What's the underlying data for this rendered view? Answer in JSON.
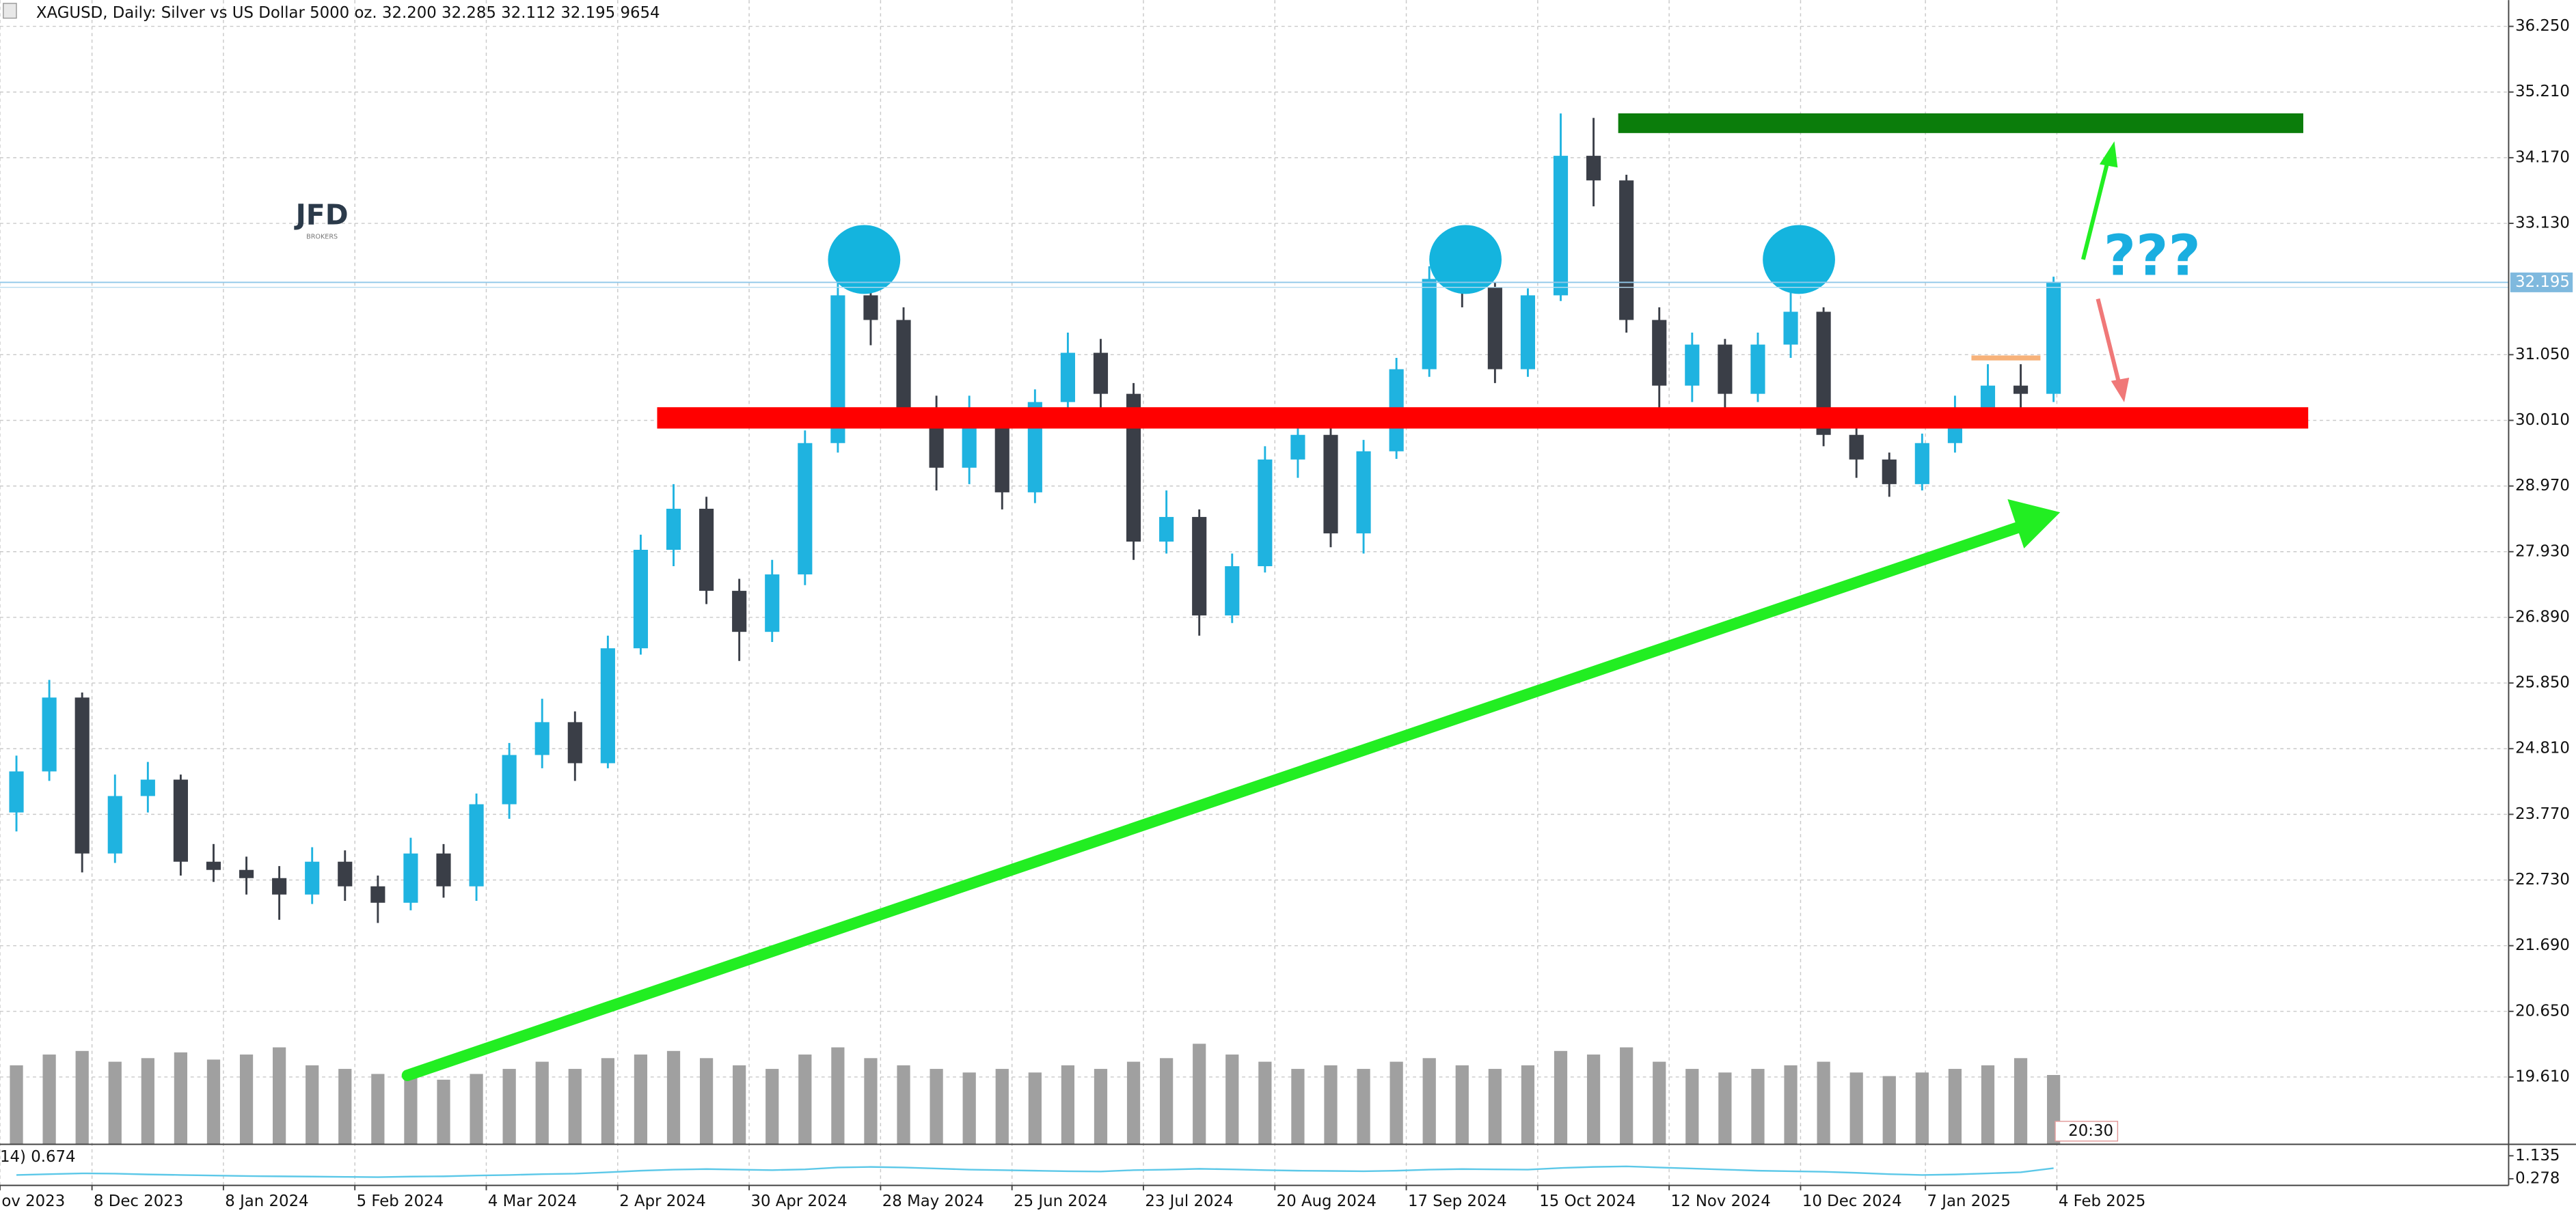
{
  "chart_data": {
    "type": "candlestick",
    "title": "XAGUSD, Daily:  Silver vs US Dollar 5000 oz.  32.200 32.285 32.112 32.195  9654",
    "x": [
      2.5,
      7.5,
      12.5,
      17.5,
      22.5,
      27.5,
      32.5,
      37.5,
      42.5,
      47.5,
      52.5,
      57.5,
      62.5,
      67.5,
      72.5,
      77.5,
      82.5,
      87.5,
      92.5,
      97.5,
      102.5,
      107.5,
      112.5,
      117.5,
      122.5,
      127.5,
      132.5,
      137.5,
      142.5,
      147.5,
      152.5,
      157.5,
      162.5,
      167.5,
      172.5,
      177.5,
      182.5,
      187.5,
      192.5,
      197.5,
      202.5,
      207.5,
      212.5,
      217.5,
      222.5,
      227.5,
      232.5,
      237.5,
      242.5,
      247.5,
      252.5,
      257.5,
      262.5,
      267.5,
      272.5,
      277.5,
      282.5,
      287.5,
      292.5,
      297.5,
      302.5,
      307.5,
      312.5
    ],
    "open": [
      23.8,
      24.45,
      25.62,
      23.15,
      24.06,
      24.32,
      23.02,
      22.89,
      22.76,
      22.5,
      23.02,
      22.63,
      22.37,
      23.15,
      22.63,
      23.93,
      24.71,
      25.23,
      24.58,
      26.4,
      27.96,
      28.61,
      27.31,
      26.66,
      27.57,
      29.65,
      31.99,
      31.6,
      30.17,
      29.26,
      29.91,
      28.87,
      30.3,
      31.08,
      30.43,
      28.09,
      28.48,
      26.92,
      27.7,
      29.39,
      29.78,
      28.22,
      29.52,
      30.82,
      32.25,
      32.12,
      30.82,
      31.99,
      34.2,
      33.81,
      31.6,
      30.56,
      31.21,
      30.43,
      31.21,
      31.73,
      29.78,
      29.39,
      29.0,
      29.65,
      30.17,
      30.56,
      30.43
    ],
    "high": [
      24.7,
      25.9,
      25.7,
      24.4,
      24.6,
      24.4,
      23.3,
      23.1,
      22.95,
      23.25,
      23.2,
      22.8,
      23.4,
      23.3,
      24.1,
      24.9,
      25.6,
      25.4,
      26.6,
      28.2,
      29.0,
      28.8,
      27.5,
      27.8,
      29.85,
      32.3,
      32.3,
      31.8,
      30.4,
      30.4,
      30.1,
      30.5,
      31.4,
      31.3,
      30.6,
      28.9,
      28.6,
      27.9,
      29.6,
      30.0,
      29.9,
      29.7,
      31.0,
      32.45,
      32.5,
      32.2,
      32.1,
      34.87,
      34.8,
      33.9,
      31.8,
      31.4,
      31.3,
      31.4,
      32.2,
      31.8,
      30.0,
      29.5,
      29.8,
      30.4,
      30.9,
      30.9,
      32.285
    ],
    "low": [
      23.5,
      24.3,
      22.85,
      23.0,
      23.8,
      22.8,
      22.7,
      22.5,
      22.1,
      22.35,
      22.4,
      22.05,
      22.25,
      22.45,
      22.4,
      23.7,
      24.5,
      24.3,
      24.5,
      26.3,
      27.7,
      27.1,
      26.2,
      26.5,
      27.4,
      29.5,
      31.2,
      29.9,
      28.9,
      29.0,
      28.6,
      28.7,
      30.1,
      30.2,
      27.8,
      27.9,
      26.6,
      26.8,
      27.6,
      29.1,
      28.0,
      27.9,
      29.4,
      30.7,
      31.8,
      30.6,
      30.7,
      31.9,
      33.4,
      31.4,
      30.2,
      30.3,
      30.2,
      30.3,
      31.0,
      29.6,
      29.1,
      28.8,
      28.9,
      29.5,
      30.1,
      30.2,
      30.3
    ],
    "close": [
      24.45,
      25.62,
      23.15,
      24.06,
      24.32,
      23.02,
      22.89,
      22.76,
      22.5,
      23.02,
      22.63,
      22.37,
      23.15,
      22.63,
      23.93,
      24.71,
      25.23,
      24.58,
      26.4,
      27.96,
      28.61,
      27.31,
      26.66,
      27.57,
      29.65,
      31.99,
      31.6,
      30.17,
      29.26,
      29.91,
      28.87,
      30.3,
      31.08,
      30.43,
      28.09,
      28.48,
      26.92,
      27.7,
      29.39,
      29.78,
      28.22,
      29.52,
      30.82,
      32.25,
      32.12,
      30.82,
      31.99,
      34.2,
      33.81,
      31.6,
      30.56,
      31.21,
      30.43,
      31.21,
      31.73,
      29.78,
      29.39,
      29.0,
      29.65,
      30.17,
      30.56,
      30.43,
      32.195
    ],
    "up_color": "#1fb3e0",
    "down_color": "#3a3e47",
    "xlim": [
      0,
      381.75
    ],
    "xticks": [
      {
        "value": 0,
        "label": "ov 2023"
      },
      {
        "value": 14,
        "label": "8 Dec 2023"
      },
      {
        "value": 34,
        "label": "8 Jan 2024"
      },
      {
        "value": 54,
        "label": "5 Feb 2024"
      },
      {
        "value": 74,
        "label": "4 Mar 2024"
      },
      {
        "value": 94,
        "label": "2 Apr 2024"
      },
      {
        "value": 114,
        "label": "30 Apr 2024"
      },
      {
        "value": 134,
        "label": "28 May 2024"
      },
      {
        "value": 154,
        "label": "25 Jun 2024"
      },
      {
        "value": 174,
        "label": "23 Jul 2024"
      },
      {
        "value": 194,
        "label": "20 Aug 2024"
      },
      {
        "value": 214,
        "label": "17 Sep 2024"
      },
      {
        "value": 234,
        "label": "15 Oct 2024"
      },
      {
        "value": 254,
        "label": "12 Nov 2024"
      },
      {
        "value": 274,
        "label": "10 Dec 2024"
      },
      {
        "value": 293,
        "label": "7 Jan 2025"
      },
      {
        "value": 313,
        "label": "4 Feb 2025"
      }
    ],
    "ylim": [
      18.544,
      36.666
    ],
    "yticks": [
      {
        "value": 36.25,
        "label": "36.250"
      },
      {
        "value": 35.21,
        "label": "35.210"
      },
      {
        "value": 34.17,
        "label": "34.170"
      },
      {
        "value": 33.13,
        "label": "33.130"
      },
      {
        "value": 31.05,
        "label": "31.050"
      },
      {
        "value": 30.01,
        "label": "30.010"
      },
      {
        "value": 28.97,
        "label": "28.970"
      },
      {
        "value": 27.93,
        "label": "27.930"
      },
      {
        "value": 26.89,
        "label": "26.890"
      },
      {
        "value": 25.85,
        "label": "25.850"
      },
      {
        "value": 24.81,
        "label": "24.810"
      },
      {
        "value": 23.77,
        "label": "23.770"
      },
      {
        "value": 22.73,
        "label": "22.730"
      },
      {
        "value": 21.69,
        "label": "21.690"
      },
      {
        "value": 20.65,
        "label": "20.650"
      },
      {
        "value": 19.61,
        "label": "19.610"
      }
    ],
    "grid": true,
    "last_price_label": "32.195",
    "volume": [
      11000,
      12500,
      13000,
      11500,
      12000,
      12800,
      11800,
      12500,
      13500,
      11000,
      10500,
      9800,
      9500,
      9000,
      9800,
      10500,
      11500,
      10500,
      12000,
      12500,
      13000,
      12000,
      11000,
      10500,
      12500,
      13500,
      12000,
      11000,
      10500,
      10000,
      10500,
      10000,
      11000,
      10500,
      11500,
      12000,
      14000,
      12500,
      11500,
      10500,
      11000,
      10500,
      11500,
      12000,
      11000,
      10500,
      11000,
      13000,
      12500,
      13500,
      11500,
      10500,
      10000,
      10500,
      11000,
      11500,
      10000,
      9500,
      10000,
      10500,
      11000,
      12000,
      9654
    ],
    "volume_lim": [
      0,
      16000
    ],
    "volume_color": "#a0a0a0",
    "indicator": {
      "label": "14) 0.674",
      "color": "#5cc8e8",
      "values": [
        0.42,
        0.45,
        0.48,
        0.47,
        0.44,
        0.42,
        0.4,
        0.38,
        0.37,
        0.36,
        0.35,
        0.34,
        0.36,
        0.37,
        0.4,
        0.42,
        0.45,
        0.47,
        0.52,
        0.58,
        0.62,
        0.64,
        0.62,
        0.6,
        0.63,
        0.7,
        0.72,
        0.7,
        0.66,
        0.62,
        0.6,
        0.58,
        0.56,
        0.55,
        0.6,
        0.62,
        0.65,
        0.63,
        0.6,
        0.58,
        0.57,
        0.56,
        0.58,
        0.62,
        0.64,
        0.63,
        0.62,
        0.68,
        0.72,
        0.74,
        0.7,
        0.66,
        0.62,
        0.58,
        0.56,
        0.54,
        0.5,
        0.45,
        0.42,
        0.44,
        0.48,
        0.52,
        0.674
      ],
      "ylim": [
        0.033,
        1.563
      ],
      "yticks": [
        1.135,
        0.278
      ]
    },
    "timer": "20:30",
    "annotations": {
      "logo": "JFD",
      "logo_sub": "BROKERS",
      "question": "???"
    }
  }
}
